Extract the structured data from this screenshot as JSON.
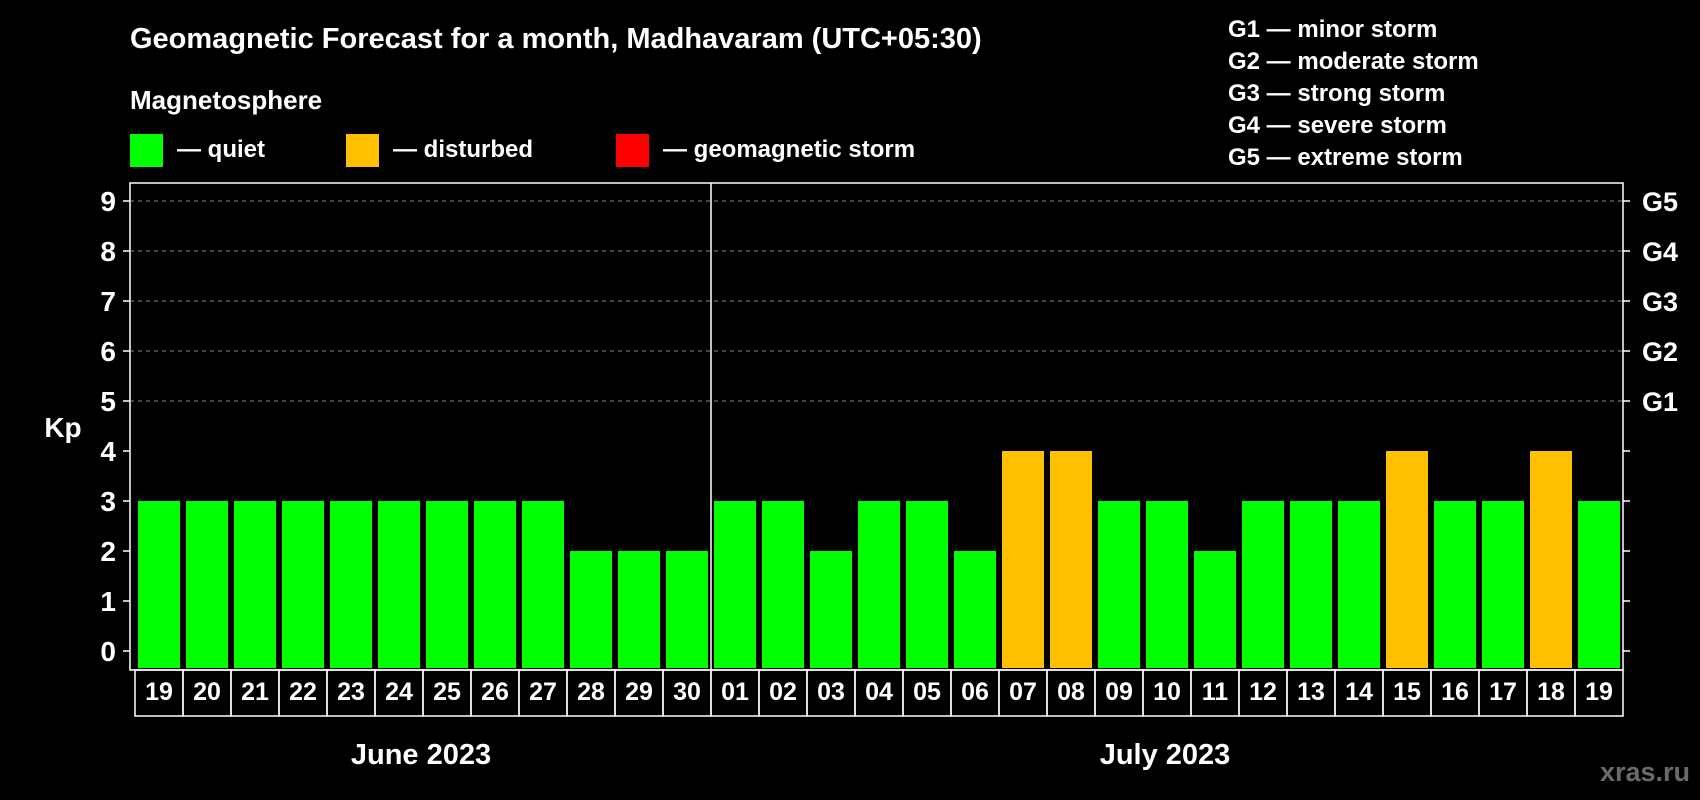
{
  "chart_data": {
    "type": "bar",
    "title": "Geomagnetic Forecast for a month, Madhavaram (UTC+05:30)",
    "subtitle": "Magnetosphere",
    "ylabel": "Kp",
    "ylim": [
      0,
      9
    ],
    "yticks": [
      "0",
      "1",
      "2",
      "3",
      "4",
      "5",
      "6",
      "7",
      "8",
      "9"
    ],
    "grid": true,
    "right_axis": [
      {
        "kp": 5,
        "label": "G1"
      },
      {
        "kp": 6,
        "label": "G2"
      },
      {
        "kp": 7,
        "label": "G3"
      },
      {
        "kp": 8,
        "label": "G4"
      },
      {
        "kp": 9,
        "label": "G5"
      }
    ],
    "legend": {
      "items": [
        {
          "label": "— quiet",
          "color": "#00ff00"
        },
        {
          "label": "— disturbed",
          "color": "#ffc000"
        },
        {
          "label": "— geomagnetic storm",
          "color": "#ff0000"
        }
      ],
      "placement": "top-left"
    },
    "storm_scale": {
      "placement": "top-right",
      "items": [
        "G1 — minor storm",
        "G2 — moderate storm",
        "G3 — strong storm",
        "G4 — severe storm",
        "G5 — extreme storm"
      ]
    },
    "months": [
      {
        "label": "June 2023",
        "days": [
          "19",
          "20",
          "21",
          "22",
          "23",
          "24",
          "25",
          "26",
          "27",
          "28",
          "29",
          "30"
        ]
      },
      {
        "label": "July 2023",
        "days": [
          "01",
          "02",
          "03",
          "04",
          "05",
          "06",
          "07",
          "08",
          "09",
          "10",
          "11",
          "12",
          "13",
          "14",
          "15",
          "16",
          "17",
          "18",
          "19"
        ]
      }
    ],
    "categories": [
      "19",
      "20",
      "21",
      "22",
      "23",
      "24",
      "25",
      "26",
      "27",
      "28",
      "29",
      "30",
      "01",
      "02",
      "03",
      "04",
      "05",
      "06",
      "07",
      "08",
      "09",
      "10",
      "11",
      "12",
      "13",
      "14",
      "15",
      "16",
      "17",
      "18",
      "19"
    ],
    "values": [
      3,
      3,
      3,
      3,
      3,
      3,
      3,
      3,
      3,
      2,
      2,
      2,
      3,
      3,
      2,
      3,
      3,
      2,
      4,
      4,
      3,
      3,
      2,
      3,
      3,
      3,
      4,
      3,
      3,
      4,
      3
    ],
    "status": [
      "quiet",
      "quiet",
      "quiet",
      "quiet",
      "quiet",
      "quiet",
      "quiet",
      "quiet",
      "quiet",
      "quiet",
      "quiet",
      "quiet",
      "quiet",
      "quiet",
      "quiet",
      "quiet",
      "quiet",
      "quiet",
      "disturbed",
      "disturbed",
      "quiet",
      "quiet",
      "quiet",
      "quiet",
      "quiet",
      "quiet",
      "disturbed",
      "quiet",
      "quiet",
      "disturbed",
      "quiet"
    ],
    "colors": {
      "quiet": "#00ff00",
      "disturbed": "#ffc000",
      "storm": "#ff0000",
      "background": "#000000",
      "grid": "#888888",
      "axis": "#ffffff"
    }
  },
  "watermark": "xras.ru"
}
